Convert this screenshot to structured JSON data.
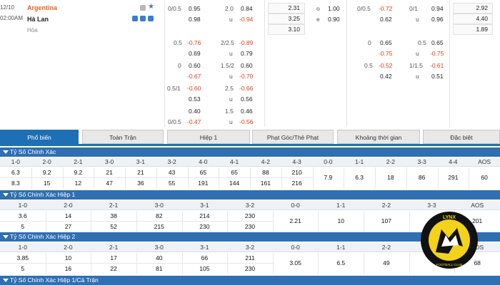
{
  "match": {
    "date": "12/10",
    "time": "02:00AM",
    "home": "Argentina",
    "away": "Hà Lan",
    "draw": "Hòa"
  },
  "odds": {
    "hcap_main": {
      "line": "0/0.5",
      "home": "0.95",
      "away": "0.98"
    },
    "ou_main": {
      "line": "2.0",
      "over_label": "u",
      "over": "0.84",
      "under": "-0.94"
    },
    "x12": [
      "2.31",
      "3.25",
      "3.10"
    ],
    "oe": {
      "o_label": "o",
      "e_label": "e",
      "o": "1.00",
      "e": "0.90"
    },
    "hcap_half": {
      "line": "0/0.5",
      "home": "-0.72",
      "away": "0.62"
    },
    "ou_half": {
      "line": "0/1",
      "under_label": "u",
      "over": "0.94",
      "under": "0.96"
    },
    "x12_half": [
      "2.92",
      "4.40",
      "1.89"
    ],
    "extra_hcap": [
      {
        "line": "0.5",
        "home": "-0.76",
        "away": "0.69"
      },
      {
        "line": "0",
        "home": "0.60",
        "away": "-0.67"
      },
      {
        "line": "0.5/1",
        "home": "-0.60",
        "away": "0.53"
      },
      {
        "line": "",
        "home": "0.40",
        "away": "-0.47"
      }
    ],
    "extra_hcap_line2": "0/0.5",
    "extra_ou": [
      {
        "line": "2/2.5",
        "over": "-0.89",
        "u": "u",
        "under": "0.79"
      },
      {
        "line": "1.5/2",
        "over": "0.60",
        "u": "u",
        "under": "-0.70"
      },
      {
        "line": "2.5",
        "over": "-0.66",
        "u": "u",
        "under": "0.56"
      },
      {
        "line": "1.5",
        "over": "0.46",
        "u": "u",
        "under": "-0.56"
      }
    ],
    "extra_half": [
      {
        "line": "0",
        "home": "0.65",
        "away": "-0.75",
        "ou_line": "0.5",
        "ou_over": "0.65",
        "ou_u": "u",
        "ou_under": "-0.75"
      },
      {
        "line": "0.5",
        "home": "-0.52",
        "away": "0.42",
        "ou_line": "1/1.5",
        "ou_over": "-0.61",
        "ou_u": "u",
        "ou_under": "0.51"
      }
    ]
  },
  "tabs": [
    "Phổ biến",
    "Toàn Trận",
    "Hiệp 1",
    "Phạt Góc/Thẻ Phạt",
    "Khoảng thời gian",
    "Đặc biệt"
  ],
  "sections": {
    "s1": {
      "title": "Tỷ Số Chính Xác",
      "headers": [
        "1-0",
        "2-0",
        "2-1",
        "3-0",
        "3-1",
        "3-2",
        "4-0",
        "4-1",
        "4-2",
        "4-3",
        "0-0",
        "1-1",
        "2-2",
        "3-3",
        "4-4",
        "AOS"
      ],
      "row1": [
        "6.3",
        "9.2",
        "9.2",
        "21",
        "21",
        "43",
        "65",
        "65",
        "88",
        "210",
        "7.9",
        "6.3",
        "18",
        "86",
        "291",
        "60"
      ],
      "row2": [
        "8.3",
        "15",
        "12",
        "47",
        "36",
        "55",
        "191",
        "144",
        "161",
        "216"
      ]
    },
    "s2": {
      "title": "Tỷ Số Chính Xác Hiệp 1",
      "headers": [
        "1-0",
        "2-0",
        "2-1",
        "3-0",
        "3-1",
        "3-2",
        "0-0",
        "1-1",
        "2-2",
        "3-3",
        "AOS"
      ],
      "row1": [
        "3.6",
        "14",
        "38",
        "82",
        "214",
        "230",
        "2.21",
        "10",
        "107",
        "",
        "201"
      ],
      "row2": [
        "5",
        "27",
        "52",
        "215",
        "230",
        "230"
      ]
    },
    "s3": {
      "title": "Tỷ Số Chính Xác Hiệp 2",
      "headers": [
        "1-0",
        "2-0",
        "2-1",
        "3-0",
        "3-1",
        "3-2",
        "0-0",
        "1-1",
        "2-2",
        "3-3",
        "AOS"
      ],
      "row1": [
        "3.85",
        "10",
        "17",
        "40",
        "66",
        "211",
        "3.05",
        "6.5",
        "49",
        "",
        "68"
      ],
      "row2": [
        "5",
        "16",
        "22",
        "81",
        "105",
        "230"
      ]
    },
    "s4": {
      "title": "Tỷ Số Chính Xác Hiệp 1/Cả Trận"
    }
  },
  "logo": {
    "text_top": "LYNX",
    "text_bottom": "FOOTBALL CLUB",
    "colors": {
      "ring": "#111111",
      "fill": "#f2d21b"
    }
  }
}
